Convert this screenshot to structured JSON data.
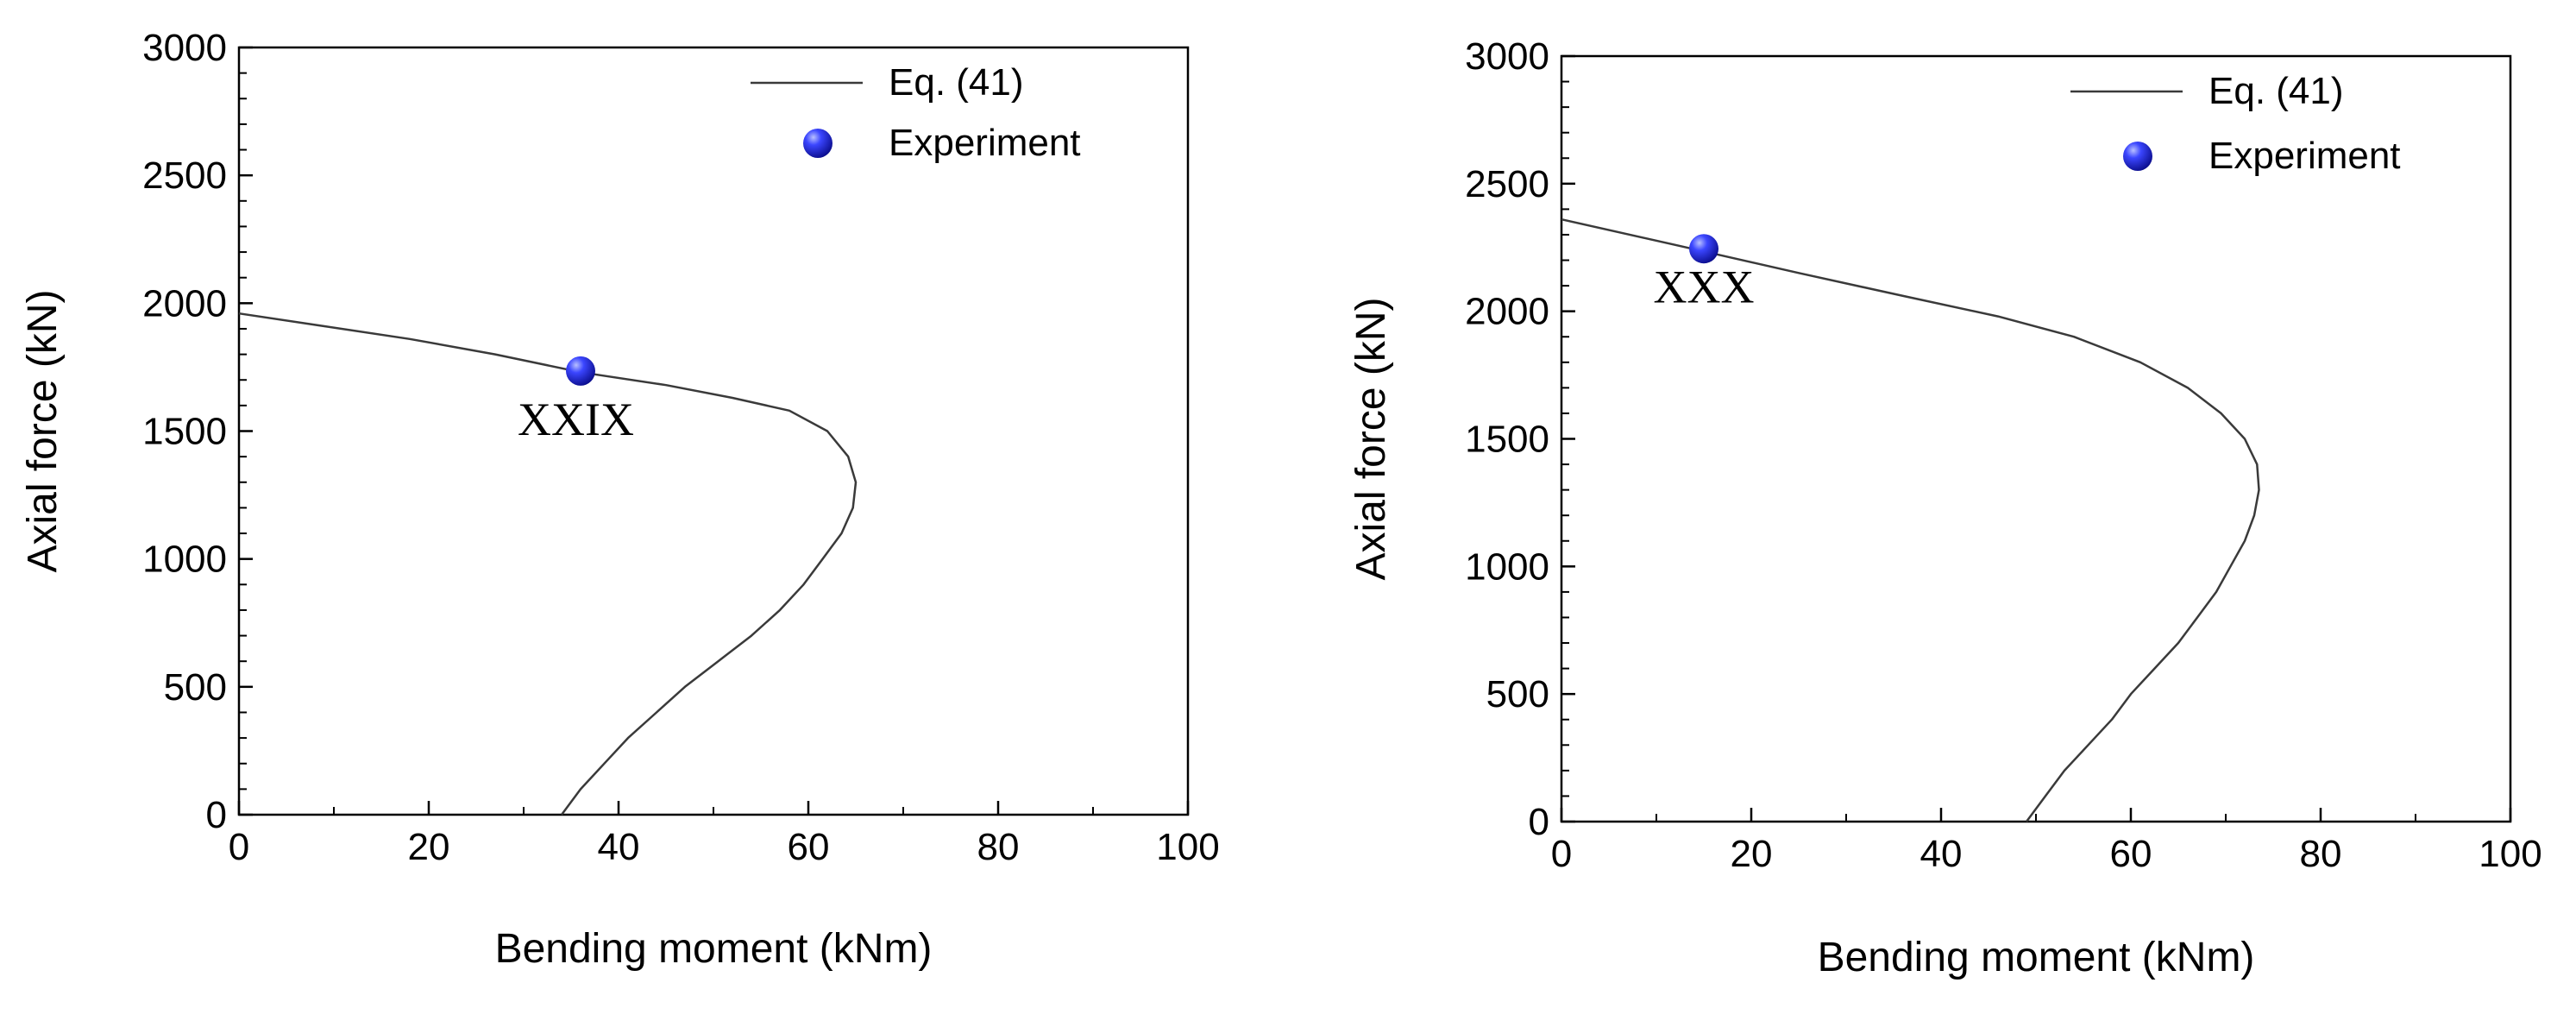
{
  "chart_data": [
    {
      "type": "line",
      "xlabel": "Bending moment (kNm)",
      "ylabel": "Axial force (kN)",
      "xlim": [
        0,
        100
      ],
      "ylim": [
        0,
        3000
      ],
      "x_ticks": [
        "0",
        "20",
        "40",
        "60",
        "80",
        "100"
      ],
      "y_ticks": [
        "0",
        "500",
        "1000",
        "1500",
        "2000",
        "2500",
        "3000"
      ],
      "legend": {
        "placement": "top-right",
        "line_label": "Eq. (41)",
        "marker_label": "Experiment"
      },
      "series": [
        {
          "name": "Eq. (41)",
          "points": [
            [
              34,
              0
            ],
            [
              36,
              100
            ],
            [
              38.5,
              200
            ],
            [
              41,
              300
            ],
            [
              44,
              400
            ],
            [
              47,
              500
            ],
            [
              50.5,
              600
            ],
            [
              54,
              700
            ],
            [
              57,
              800
            ],
            [
              59.5,
              900
            ],
            [
              61.5,
              1000
            ],
            [
              63.5,
              1100
            ],
            [
              64.7,
              1200
            ],
            [
              65,
              1300
            ],
            [
              64.2,
              1400
            ],
            [
              62,
              1500
            ],
            [
              58,
              1580
            ],
            [
              52,
              1630
            ],
            [
              45,
              1680
            ],
            [
              36,
              1730
            ],
            [
              27,
              1800
            ],
            [
              18,
              1860
            ],
            [
              9,
              1910
            ],
            [
              0,
              1960
            ]
          ]
        },
        {
          "name": "Experiment",
          "points": [
            [
              36,
              1735
            ]
          ]
        }
      ],
      "annotations": [
        {
          "text": "XXIX",
          "x": 35.5,
          "y": 1485
        }
      ],
      "color_marker": "#1b20e8"
    },
    {
      "type": "line",
      "xlabel": "Bending moment (kNm)",
      "ylabel": "Axial force (kN)",
      "xlim": [
        0,
        100
      ],
      "ylim": [
        0,
        3000
      ],
      "x_ticks": [
        "0",
        "20",
        "40",
        "60",
        "80",
        "100"
      ],
      "y_ticks": [
        "0",
        "500",
        "1000",
        "1500",
        "2000",
        "2500",
        "3000"
      ],
      "legend": {
        "placement": "top-right",
        "line_label": "Eq. (41)",
        "marker_label": "Experiment"
      },
      "series": [
        {
          "name": "Eq. (41)",
          "points": [
            [
              49,
              0
            ],
            [
              51,
              100
            ],
            [
              53,
              200
            ],
            [
              55.5,
              300
            ],
            [
              58,
              400
            ],
            [
              60,
              500
            ],
            [
              62.5,
              600
            ],
            [
              65,
              700
            ],
            [
              67,
              800
            ],
            [
              69,
              900
            ],
            [
              70.5,
              1000
            ],
            [
              72,
              1100
            ],
            [
              73,
              1200
            ],
            [
              73.5,
              1300
            ],
            [
              73.3,
              1400
            ],
            [
              72,
              1500
            ],
            [
              69.5,
              1600
            ],
            [
              66,
              1700
            ],
            [
              61,
              1800
            ],
            [
              54,
              1900
            ],
            [
              46,
              1980
            ],
            [
              36,
              2060
            ],
            [
              25,
              2150
            ],
            [
              12,
              2260
            ],
            [
              0,
              2360
            ]
          ]
        },
        {
          "name": "Experiment",
          "points": [
            [
              15,
              2245
            ]
          ]
        }
      ],
      "annotations": [
        {
          "text": "XXX",
          "x": 15,
          "y": 2035
        }
      ],
      "color_marker": "#1b20e8"
    }
  ]
}
